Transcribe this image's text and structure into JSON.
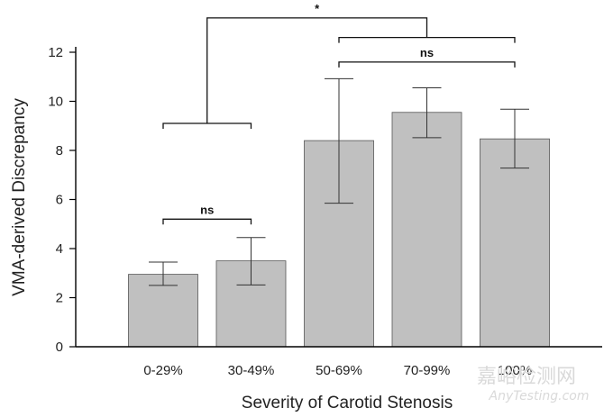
{
  "chart_data": {
    "type": "bar",
    "title": "",
    "xlabel": "Severity of Carotid Stenosis",
    "ylabel": "VMA-derived Discrepancy",
    "ylim": [
      0,
      12
    ],
    "yticks": [
      0,
      2,
      4,
      6,
      8,
      10,
      12
    ],
    "categories": [
      "0-29%",
      "30-49%",
      "50-69%",
      "70-99%",
      "100%"
    ],
    "values": [
      2.95,
      3.5,
      8.4,
      9.55,
      8.47
    ],
    "error_low": [
      2.5,
      2.52,
      5.85,
      8.52,
      7.28
    ],
    "error_high": [
      3.45,
      4.45,
      10.92,
      10.55,
      9.68
    ],
    "bar_color": "#c0c0c0",
    "significance": [
      {
        "label": "ns",
        "from": 0,
        "to": 1,
        "level": 5.2
      },
      {
        "label": "ns",
        "from": 2,
        "to": 4,
        "level": 11.6
      },
      {
        "label": "*",
        "from": "group 0-1",
        "to": "group 2-4",
        "level": 13.4,
        "stem_from": 9.1
      }
    ]
  },
  "watermark": {
    "cn": "嘉峪检测网",
    "en": "AnyTesting.com"
  }
}
